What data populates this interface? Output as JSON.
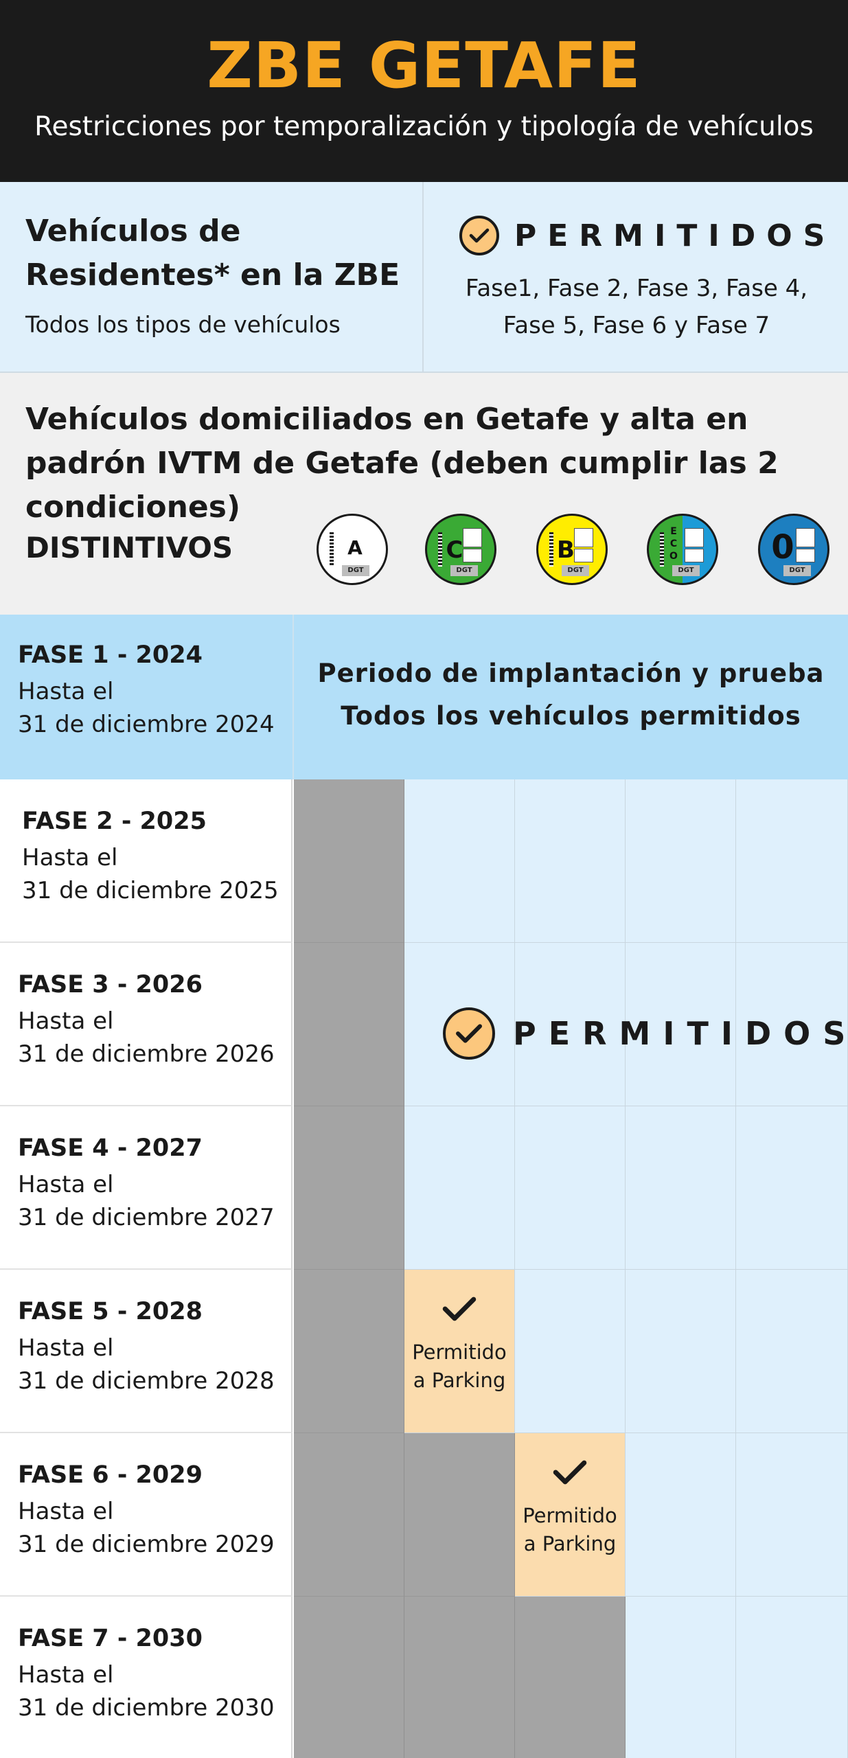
{
  "header": {
    "title": "ZBE GETAFE",
    "subtitle": "Restricciones por temporalización y tipología de vehículos"
  },
  "residents": {
    "title": "Vehículos de Residentes* en la ZBE",
    "subtitle": "Todos los tipos de vehículos",
    "status": "PERMITIDOS",
    "phases_line1": "Fase1, Fase 2, Fase 3, Fase 4,",
    "phases_line2": "Fase 5, Fase 6 y Fase 7"
  },
  "domiciled": {
    "title": "Vehículos domiciliados en Getafe y alta en padrón IVTM de Getafe (deben cumplir las 2 condiciones)",
    "distintivos_label": "DISTINTIVOS",
    "badges": [
      {
        "letter": "A",
        "color": "#ffffff",
        "label": "DGT"
      },
      {
        "letter": "C",
        "color": "#3aaa35",
        "label": "DGT"
      },
      {
        "letter": "B",
        "color": "#ffed00",
        "label": "DGT"
      },
      {
        "letter": "ECO",
        "color": "#3aaa35",
        "color2": "#1d9bd7",
        "label": "DGT"
      },
      {
        "letter": "0",
        "color": "#1d7fc0",
        "label": "DGT"
      }
    ]
  },
  "phase1": {
    "title": "FASE 1 - 2024",
    "line1": "Hasta el",
    "line2": "31 de diciembre 2024",
    "msg1": "Periodo de implantación y prueba",
    "msg2": "Todos los vehículos permitidos"
  },
  "phases": [
    {
      "title": "FASE 2 - 2025",
      "line1": "Hasta el",
      "line2": "31 de diciembre 2025"
    },
    {
      "title": "FASE 3 - 2026",
      "line1": "Hasta el",
      "line2": "31 de diciembre 2026"
    },
    {
      "title": "FASE 4 - 2027",
      "line1": "Hasta el",
      "line2": "31 de diciembre 2027"
    },
    {
      "title": "FASE 5 - 2028",
      "line1": "Hasta el",
      "line2": "31 de diciembre 2028"
    },
    {
      "title": "FASE 6 - 2029",
      "line1": "Hasta el",
      "line2": "31 de diciembre 2029"
    },
    {
      "title": "FASE 7 - 2030",
      "line1": "Hasta el",
      "line2": "31 de diciembre 2030"
    }
  ],
  "grid": {
    "permitidos": "PERMITIDOS",
    "parking_line1": "Permitido",
    "parking_line2": "a Parking",
    "cells": [
      [
        "grey",
        "blue",
        "blue",
        "blue",
        "blue"
      ],
      [
        "grey",
        "blue",
        "blue",
        "blue",
        "blue"
      ],
      [
        "grey",
        "blue",
        "blue",
        "blue",
        "blue"
      ],
      [
        "grey",
        "orange",
        "blue",
        "blue",
        "blue"
      ],
      [
        "grey",
        "grey",
        "orange",
        "blue",
        "blue"
      ],
      [
        "grey",
        "grey",
        "grey",
        "blue",
        "blue"
      ]
    ]
  },
  "colors": {
    "accent": "#f6a623",
    "header_bg": "#1b1b1b",
    "allowed_blue": "#dff0fc",
    "phase1_blue": "#b3dff8",
    "restricted_grey": "#a4a4a4",
    "parking_orange": "#fbdcae"
  }
}
